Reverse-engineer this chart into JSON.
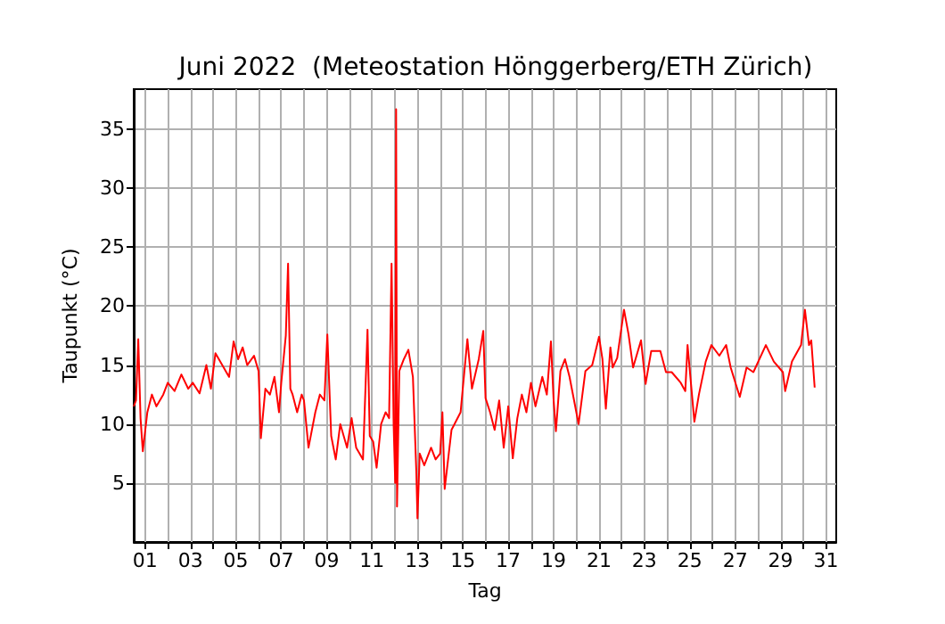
{
  "chart_data": {
    "type": "line",
    "title": "Juni 2022  (Meteostation Hönggerberg/ETH Zürich)",
    "xlabel": "Tag",
    "ylabel": "Taupunkt (°C)",
    "x": [
      0.5,
      0.6,
      0.7,
      0.8,
      0.9,
      1.1,
      1.3,
      1.5,
      1.8,
      2.0,
      2.3,
      2.6,
      2.9,
      3.1,
      3.4,
      3.7,
      3.9,
      4.1,
      4.4,
      4.7,
      4.9,
      5.1,
      5.3,
      5.5,
      5.8,
      6.0,
      6.1,
      6.3,
      6.5,
      6.7,
      6.9,
      7.0,
      7.2,
      7.3,
      7.4,
      7.5,
      7.7,
      7.9,
      8.0,
      8.2,
      8.5,
      8.7,
      8.9,
      9.03,
      9.2,
      9.4,
      9.6,
      9.9,
      10.1,
      10.3,
      10.6,
      10.8,
      10.9,
      11.05,
      11.2,
      11.4,
      11.6,
      11.75,
      11.86,
      11.95,
      12.02,
      12.06,
      12.1,
      12.2,
      12.4,
      12.6,
      12.8,
      12.95,
      13.0,
      13.1,
      13.3,
      13.6,
      13.8,
      14.0,
      14.1,
      14.2,
      14.5,
      14.9,
      15.2,
      15.4,
      15.7,
      15.9,
      16.0,
      16.2,
      16.4,
      16.6,
      16.8,
      17.0,
      17.2,
      17.4,
      17.6,
      17.8,
      18.0,
      18.2,
      18.5,
      18.7,
      18.88,
      19.0,
      19.1,
      19.3,
      19.5,
      19.7,
      19.9,
      20.1,
      20.4,
      20.7,
      21.0,
      21.15,
      21.3,
      21.5,
      21.6,
      21.8,
      22.1,
      22.3,
      22.5,
      22.85,
      23.05,
      23.3,
      23.7,
      23.95,
      24.2,
      24.6,
      24.8,
      24.9,
      25.2,
      25.4,
      25.7,
      25.95,
      26.3,
      26.6,
      26.8,
      27.2,
      27.5,
      27.8,
      28.35,
      28.7,
      29.1,
      29.2,
      29.5,
      29.9,
      30.07,
      30.25,
      30.35,
      30.5
    ],
    "series": [
      {
        "color": "#ff0000",
        "values": [
          11.5,
          12,
          17.2,
          10.5,
          7.7,
          11,
          12.5,
          11.5,
          12.5,
          13.5,
          12.8,
          14.2,
          13,
          13.5,
          12.6,
          15,
          13,
          16,
          15,
          14,
          17,
          15.5,
          16.5,
          15,
          15.8,
          14.5,
          8.8,
          13,
          12.5,
          14,
          11,
          13.5,
          17.5,
          23.6,
          13,
          12.5,
          11,
          12.5,
          12,
          8,
          11,
          12.5,
          12,
          17.6,
          9,
          7,
          10,
          8,
          10.5,
          8,
          7,
          18,
          9,
          8.5,
          6.3,
          10,
          11,
          10.5,
          23.6,
          10,
          5,
          36.7,
          3,
          14.5,
          15.5,
          16.3,
          14,
          6,
          2,
          7.5,
          6.5,
          8,
          7,
          7.5,
          11,
          4.5,
          9.5,
          11,
          17.2,
          13,
          15.5,
          17.9,
          12.2,
          11,
          9.5,
          12,
          8,
          11.5,
          7.1,
          10.5,
          12.5,
          11,
          13.5,
          11.5,
          14,
          12.5,
          17,
          12,
          9.4,
          14.5,
          15.5,
          14,
          12,
          10,
          14.5,
          15,
          17.4,
          15.5,
          11.3,
          16.5,
          14.8,
          15.6,
          19.7,
          17.6,
          14.8,
          17.1,
          13.4,
          16.2,
          16.2,
          14.4,
          14.4,
          13.5,
          12.8,
          16.7,
          10.2,
          12.5,
          15.3,
          16.7,
          15.8,
          16.7,
          14.8,
          12.3,
          14.8,
          14.4,
          16.7,
          15.3,
          14.4,
          12.8,
          15.3,
          16.7,
          19.7,
          16.7,
          17.1,
          13.1
        ]
      }
    ],
    "xlim": [
      0.5,
      31.45
    ],
    "xticks": [
      {
        "value": 1,
        "label": "01"
      },
      {
        "value": 2,
        "label": null
      },
      {
        "value": 3,
        "label": "03"
      },
      {
        "value": 4,
        "label": null
      },
      {
        "value": 5,
        "label": "05"
      },
      {
        "value": 6,
        "label": null
      },
      {
        "value": 7,
        "label": "07"
      },
      {
        "value": 8,
        "label": null
      },
      {
        "value": 9,
        "label": "09"
      },
      {
        "value": 10,
        "label": null
      },
      {
        "value": 11,
        "label": "11"
      },
      {
        "value": 12,
        "label": null
      },
      {
        "value": 13,
        "label": "13"
      },
      {
        "value": 14,
        "label": null
      },
      {
        "value": 15,
        "label": "15"
      },
      {
        "value": 16,
        "label": null
      },
      {
        "value": 17,
        "label": "17"
      },
      {
        "value": 18,
        "label": null
      },
      {
        "value": 19,
        "label": "19"
      },
      {
        "value": 20,
        "label": null
      },
      {
        "value": 21,
        "label": "21"
      },
      {
        "value": 22,
        "label": null
      },
      {
        "value": 23,
        "label": "23"
      },
      {
        "value": 24,
        "label": null
      },
      {
        "value": 25,
        "label": "25"
      },
      {
        "value": 26,
        "label": null
      },
      {
        "value": 27,
        "label": "27"
      },
      {
        "value": 28,
        "label": null
      },
      {
        "value": 29,
        "label": "29"
      },
      {
        "value": 30,
        "label": null
      },
      {
        "value": 31,
        "label": "31"
      }
    ],
    "ylim": [
      0,
      38.4
    ],
    "yticks": [
      5,
      10,
      15,
      20,
      25,
      30,
      35
    ],
    "grid": true,
    "line_style": "solid",
    "marker": "none"
  }
}
